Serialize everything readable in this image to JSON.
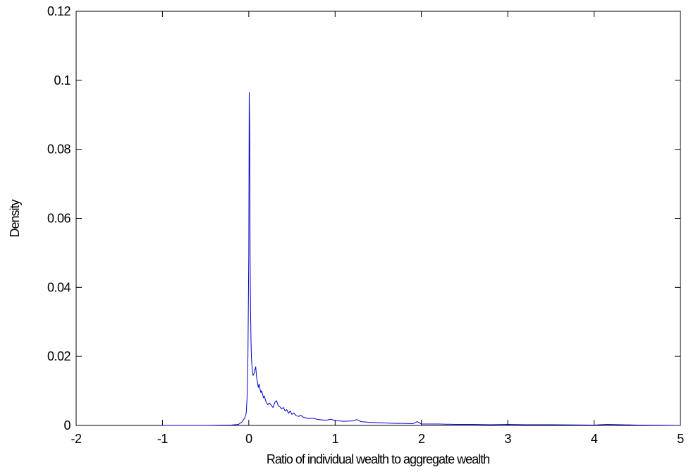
{
  "chart_data": {
    "type": "line",
    "title": "",
    "xlabel": "Ratio of individual wealth to aggregate wealth",
    "ylabel": "Density",
    "xlim": [
      -2,
      5
    ],
    "ylim": [
      0,
      0.12
    ],
    "x_ticks": [
      -2,
      -1,
      0,
      1,
      2,
      3,
      4,
      5
    ],
    "x_tick_labels": [
      "-2",
      "-1",
      "0",
      "1",
      "2",
      "3",
      "4",
      "5"
    ],
    "y_ticks": [
      0,
      0.02,
      0.04,
      0.06,
      0.08,
      0.1,
      0.12
    ],
    "y_tick_labels": [
      "0",
      "0.02",
      "0.04",
      "0.06",
      "0.08",
      "0.1",
      "0.12"
    ],
    "grid": false,
    "legend": "none",
    "series": [
      {
        "color": "#0000cc",
        "x": [
          -1.0,
          -0.5,
          -0.2,
          -0.12,
          -0.08,
          -0.05,
          -0.03,
          -0.02,
          -0.01,
          0.0,
          0.005,
          0.01,
          0.015,
          0.02,
          0.025,
          0.03,
          0.04,
          0.05,
          0.06,
          0.07,
          0.08,
          0.09,
          0.1,
          0.11,
          0.12,
          0.13,
          0.14,
          0.15,
          0.16,
          0.17,
          0.18,
          0.2,
          0.22,
          0.24,
          0.26,
          0.28,
          0.3,
          0.32,
          0.34,
          0.36,
          0.38,
          0.4,
          0.42,
          0.44,
          0.46,
          0.48,
          0.5,
          0.52,
          0.55,
          0.58,
          0.6,
          0.63,
          0.66,
          0.7,
          0.75,
          0.8,
          0.85,
          0.9,
          0.95,
          1.0,
          1.1,
          1.2,
          1.25,
          1.3,
          1.4,
          1.5,
          1.6,
          1.7,
          1.8,
          1.9,
          1.95,
          2.0,
          2.2,
          2.4,
          2.6,
          2.8,
          3.0,
          3.2,
          3.5,
          4.0,
          4.15,
          4.5,
          5.0
        ],
        "y": [
          0.0,
          0.0,
          0.0001,
          0.0003,
          0.001,
          0.002,
          0.0035,
          0.008,
          0.02,
          0.05,
          0.0965,
          0.085,
          0.05,
          0.035,
          0.025,
          0.02,
          0.016,
          0.0145,
          0.015,
          0.016,
          0.017,
          0.014,
          0.0125,
          0.011,
          0.012,
          0.0105,
          0.0095,
          0.01,
          0.009,
          0.008,
          0.0085,
          0.0068,
          0.006,
          0.0065,
          0.0058,
          0.0052,
          0.0066,
          0.0072,
          0.0058,
          0.0054,
          0.0048,
          0.0052,
          0.0042,
          0.0046,
          0.0035,
          0.0042,
          0.0032,
          0.0036,
          0.0028,
          0.0026,
          0.003,
          0.0024,
          0.0022,
          0.002,
          0.0021,
          0.0017,
          0.0016,
          0.0015,
          0.0018,
          0.0014,
          0.0012,
          0.0013,
          0.0017,
          0.0011,
          0.0009,
          0.0008,
          0.0007,
          0.0006,
          0.0006,
          0.0005,
          0.0011,
          0.0004,
          0.0004,
          0.0003,
          0.0003,
          0.0002,
          0.0003,
          0.0002,
          0.0002,
          0.0001,
          0.0003,
          0.0001,
          0.0
        ]
      }
    ]
  }
}
